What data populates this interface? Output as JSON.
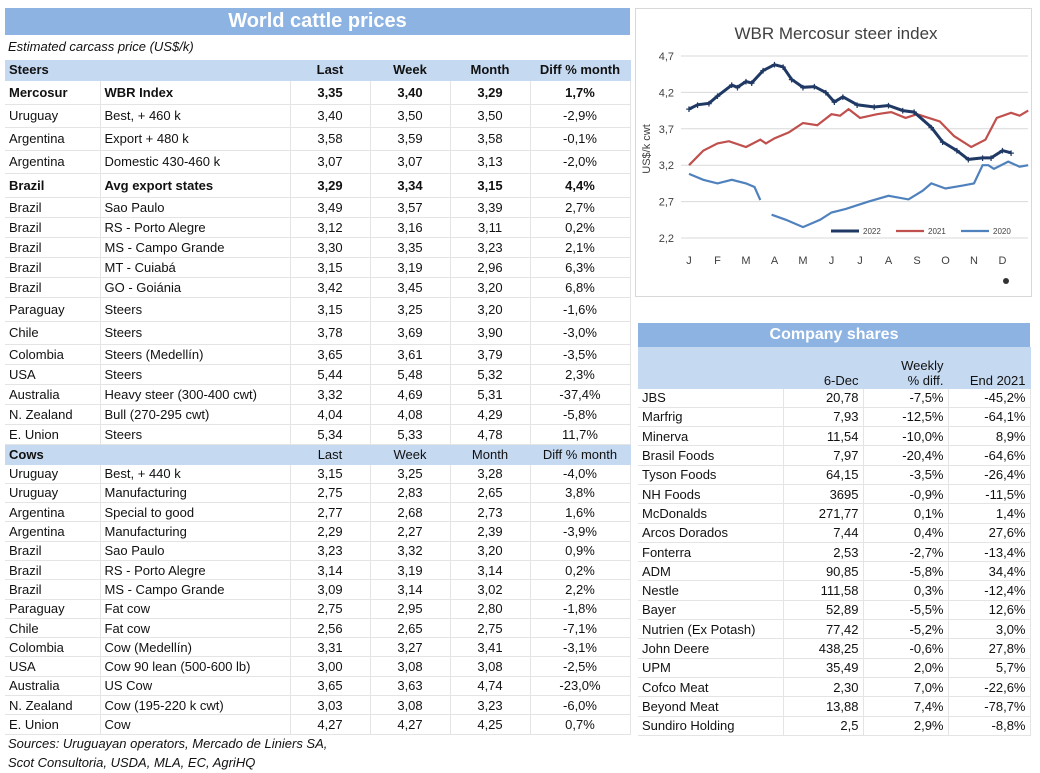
{
  "cattle": {
    "title": "World cattle prices",
    "subtitle": "Estimated carcass price (US$/k)",
    "steers_header": [
      "Steers",
      "",
      "Last",
      "Week",
      "Month",
      "Diff % month"
    ],
    "steers": [
      [
        "Mercosur",
        "WBR Index",
        "3,35",
        "3,40",
        "3,29",
        "1,7%",
        true
      ],
      [
        "Uruguay",
        "Best, + 460 k",
        "3,40",
        "3,50",
        "3,50",
        "-2,9%",
        false
      ],
      [
        "Argentina",
        "Export + 480 k",
        "3,58",
        "3,59",
        "3,58",
        "-0,1%",
        false
      ],
      [
        "Argentina",
        "Domestic 430-460 k",
        "3,07",
        "3,07",
        "3,13",
        "-2,0%",
        false
      ],
      [
        "Brazil",
        "Avg export states",
        "3,29",
        "3,34",
        "3,15",
        "4,4%",
        true
      ],
      [
        "Brazil",
        "Sao Paulo",
        "3,49",
        "3,57",
        "3,39",
        "2,7%",
        false
      ],
      [
        "Brazil",
        "RS - Porto Alegre",
        "3,12",
        "3,16",
        "3,11",
        "0,2%",
        false
      ],
      [
        "Brazil",
        "MS - Campo Grande",
        "3,30",
        "3,35",
        "3,23",
        "2,1%",
        false
      ],
      [
        "Brazil",
        "MT - Cuiabá",
        "3,15",
        "3,19",
        "2,96",
        "6,3%",
        false
      ],
      [
        "Brazil",
        "GO - Goiánia",
        "3,42",
        "3,45",
        "3,20",
        "6,8%",
        false
      ],
      [
        "Paraguay",
        "Steers",
        "3,15",
        "3,25",
        "3,20",
        "-1,6%",
        false
      ],
      [
        "Chile",
        "Steers",
        "3,78",
        "3,69",
        "3,90",
        "-3,0%",
        false
      ],
      [
        "Colombia",
        "Steers (Medellín)",
        "3,65",
        "3,61",
        "3,79",
        "-3,5%",
        false
      ],
      [
        "USA",
        "Steers",
        "5,44",
        "5,48",
        "5,32",
        "2,3%",
        false
      ],
      [
        "Australia",
        "Heavy steer (300-400 cwt)",
        "3,32",
        "4,69",
        "5,31",
        "-37,4%",
        false
      ],
      [
        "N. Zealand",
        "Bull (270-295 cwt)",
        "4,04",
        "4,08",
        "4,29",
        "-5,8%",
        false
      ],
      [
        "E. Union",
        "Steers",
        "5,34",
        "5,33",
        "4,78",
        "11,7%",
        false
      ]
    ],
    "cows_header": [
      "Cows",
      "",
      "Last",
      "Week",
      "Month",
      "Diff % month"
    ],
    "cows": [
      [
        "Uruguay",
        "Best, + 440 k",
        "3,15",
        "3,25",
        "3,28",
        "-4,0%"
      ],
      [
        "Uruguay",
        "Manufacturing",
        "2,75",
        "2,83",
        "2,65",
        "3,8%"
      ],
      [
        "Argentina",
        "Special to good",
        "2,77",
        "2,68",
        "2,73",
        "1,6%"
      ],
      [
        "Argentina",
        "Manufacturing",
        "2,29",
        "2,27",
        "2,39",
        "-3,9%"
      ],
      [
        "Brazil",
        "Sao Paulo",
        "3,23",
        "3,32",
        "3,20",
        "0,9%"
      ],
      [
        "Brazil",
        "RS - Porto Alegre",
        "3,14",
        "3,19",
        "3,14",
        "0,2%"
      ],
      [
        "Brazil",
        "MS - Campo Grande",
        "3,09",
        "3,14",
        "3,02",
        "2,2%"
      ],
      [
        "Paraguay",
        "Fat cow",
        "2,75",
        "2,95",
        "2,80",
        "-1,8%"
      ],
      [
        "Chile",
        "Fat cow",
        "2,56",
        "2,65",
        "2,75",
        "-7,1%"
      ],
      [
        "Colombia",
        "Cow (Medellín)",
        "3,31",
        "3,27",
        "3,41",
        "-3,1%"
      ],
      [
        "USA",
        "Cow 90 lean (500-600 lb)",
        "3,00",
        "3,08",
        "3,08",
        "-2,5%"
      ],
      [
        "Australia",
        "US Cow",
        "3,65",
        "3,63",
        "4,74",
        "-23,0%"
      ],
      [
        "N. Zealand",
        "Cow (195-220 k cwt)",
        "3,03",
        "3,08",
        "3,23",
        "-6,0%"
      ],
      [
        "E. Union",
        "Cow",
        "4,27",
        "4,27",
        "4,25",
        "0,7%"
      ]
    ],
    "sources": [
      "Sources: Uruguayan operators, Mercado de Liniers SA,",
      "Scot Consultoria, USDA, MLA, EC, AgriHQ"
    ]
  },
  "shares": {
    "title": "Company shares",
    "header": [
      "",
      "6-Dec",
      "Weekly\n% diff.",
      "End 2021"
    ],
    "rows": [
      [
        "JBS",
        "20,78",
        "-7,5%",
        "-45,2%"
      ],
      [
        "Marfrig",
        "7,93",
        "-12,5%",
        "-64,1%"
      ],
      [
        "Minerva",
        "11,54",
        "-10,0%",
        "8,9%"
      ],
      [
        "Brasil Foods",
        "7,97",
        "-20,4%",
        "-64,6%"
      ],
      [
        "Tyson Foods",
        "64,15",
        "-3,5%",
        "-26,4%"
      ],
      [
        "NH Foods",
        "3695",
        "-0,9%",
        "-11,5%"
      ],
      [
        "McDonalds",
        "271,77",
        "0,1%",
        "1,4%"
      ],
      [
        "Arcos Dorados",
        "7,44",
        "0,4%",
        "27,6%"
      ],
      [
        "Fonterra",
        "2,53",
        "-2,7%",
        "-13,4%"
      ],
      [
        "ADM",
        "90,85",
        "-5,8%",
        "34,4%"
      ],
      [
        "Nestle",
        "111,58",
        "0,3%",
        "-12,4%"
      ],
      [
        "Bayer",
        "52,89",
        "-5,5%",
        "12,6%"
      ],
      [
        "Nutrien (Ex Potash)",
        "77,42",
        "-5,2%",
        "3,0%"
      ],
      [
        "John Deere",
        "438,25",
        "-0,6%",
        "27,8%"
      ],
      [
        "UPM",
        "35,49",
        "2,0%",
        "5,7%"
      ],
      [
        "Cofco Meat",
        "2,30",
        "7,0%",
        "-22,6%"
      ],
      [
        "Beyond Meat",
        "13,88",
        "7,4%",
        "-78,7%"
      ],
      [
        "Sundiro Holding",
        "2,5",
        "2,9%",
        "-8,8%"
      ]
    ]
  },
  "chart_data": {
    "type": "line",
    "title": "WBR Mercosur steer index",
    "ylabel": "US$/k cwt",
    "categories": [
      "J",
      "F",
      "M",
      "A",
      "M",
      "J",
      "J",
      "A",
      "S",
      "O",
      "N",
      "D"
    ],
    "ylim": [
      2.2,
      4.7
    ],
    "yticks": [
      "4,7",
      "4,2",
      "3,7",
      "3,2",
      "2,7",
      "2,2"
    ],
    "grid": true,
    "legend": "bottom-right",
    "series": [
      {
        "name": "2022",
        "color": "#1f3864",
        "marker": "+",
        "x": [
          0,
          0.3,
          0.7,
          1.0,
          1.5,
          1.7,
          2.0,
          2.2,
          2.6,
          3.0,
          3.3,
          3.6,
          4.0,
          4.4,
          4.8,
          5.1,
          5.4,
          5.9,
          6.5,
          7.0,
          7.5,
          7.9,
          8.5,
          8.9,
          9.4,
          9.8,
          10.3,
          10.6,
          11.0,
          11.3
        ],
        "y": [
          3.97,
          4.03,
          4.05,
          4.15,
          4.3,
          4.27,
          4.35,
          4.33,
          4.5,
          4.58,
          4.55,
          4.38,
          4.27,
          4.28,
          4.2,
          4.07,
          4.14,
          4.03,
          4.0,
          4.02,
          3.95,
          3.93,
          3.72,
          3.52,
          3.4,
          3.28,
          3.3,
          3.3,
          3.4,
          3.37
        ]
      },
      {
        "name": "2021",
        "color": "#c0504d",
        "x": [
          0,
          0.5,
          1,
          1.4,
          2,
          2.5,
          2.7,
          3,
          3.5,
          4,
          4.5,
          5,
          5.3,
          5.6,
          6,
          6.6,
          7.1,
          7.6,
          8,
          8.8,
          9.3,
          9.9,
          10.4,
          10.8,
          11.3,
          11.6,
          11.9
        ],
        "y": [
          3.2,
          3.4,
          3.5,
          3.53,
          3.45,
          3.55,
          3.5,
          3.57,
          3.65,
          3.78,
          3.75,
          3.9,
          3.88,
          3.97,
          3.85,
          3.9,
          3.93,
          3.85,
          3.9,
          3.8,
          3.6,
          3.45,
          3.55,
          3.85,
          3.92,
          3.88,
          3.95
        ]
      },
      {
        "name": "2020",
        "color": "#4f81bd",
        "x": [
          0,
          0.5,
          1,
          1.5,
          2,
          2.3,
          2.5,
          2.7,
          2.9,
          3.4,
          4,
          4.6,
          5,
          5.5,
          6.3,
          7,
          7.7,
          8.2,
          8.5,
          9,
          9.6,
          10,
          10.3,
          10.5,
          10.7,
          11.2,
          11.6,
          11.9
        ],
        "y": [
          3.08,
          3.0,
          2.95,
          3.0,
          2.95,
          2.9,
          2.72,
          null,
          2.52,
          2.45,
          2.35,
          2.45,
          2.55,
          2.6,
          2.7,
          2.78,
          2.73,
          2.85,
          2.95,
          2.88,
          2.92,
          2.95,
          3.2,
          3.2,
          3.15,
          3.25,
          3.18,
          3.2
        ]
      }
    ]
  }
}
